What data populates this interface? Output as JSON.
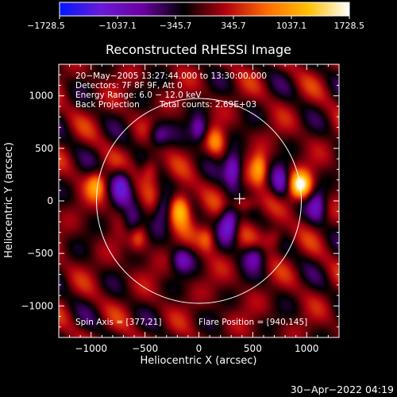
{
  "chart_data": {
    "type": "heatmap",
    "title": "Reconstructed RHESSI Image",
    "xlabel": "Heliocentric X (arcsec)",
    "ylabel": "Heliocentric Y (arcsec)",
    "xlim": [
      -1300,
      1300
    ],
    "ylim": [
      -1300,
      1300
    ],
    "xticks": [
      -1000,
      -500,
      0,
      500,
      1000
    ],
    "yticks": [
      -1000,
      -500,
      0,
      500,
      1000
    ],
    "xtick_labels": [
      "−1000",
      "−500",
      "0",
      "500",
      "1000"
    ],
    "ytick_labels": [
      "−1000",
      "−500",
      "0",
      "500",
      "1000"
    ],
    "colorbar": {
      "min": -1728.5,
      "max": 1728.5,
      "ticks": [
        -1728.5,
        -1037.1,
        -345.7,
        345.7,
        1037.1,
        1728.5
      ],
      "tick_labels": [
        "−1728.5",
        "−1037.1",
        "−345.7",
        "345.7",
        "1037.1",
        "1728.5"
      ],
      "colors": [
        "#0018ff",
        "#6a1ad8",
        "#6a00a0",
        "#000000",
        "#b00010",
        "#ff6a00",
        "#ffc000",
        "#ffffff"
      ]
    },
    "info_lines": [
      "20−May−2005 13:27:44.000 to 13:30:00.000",
      "Detectors: 7F 8F 9F, Att 0",
      "Energy Range: 6.0 − 12.0 keV",
      "Back Projection",
      "Total counts: 2.69E+03"
    ],
    "spin_axis_label": "Spin Axis = [377,21]",
    "flare_position_label": "Flare Position = [940,145]",
    "spin_axis": [
      377,
      21
    ],
    "flare_position": [
      940,
      145
    ],
    "solar_limb_radius_arcsec": 950,
    "grid": false,
    "sources": [
      {
        "x": 940,
        "y": 145,
        "value": 1728.5,
        "sx": 70,
        "sy": 90
      },
      {
        "x": -170,
        "y": -70,
        "value": 1500,
        "sx": 70,
        "sy": 110
      },
      {
        "x": 560,
        "y": 300,
        "value": 1150,
        "sx": 55,
        "sy": 100
      },
      {
        "x": -950,
        "y": 160,
        "value": 900,
        "sx": 60,
        "sy": 90
      },
      {
        "x": 420,
        "y": -30,
        "value": 800,
        "sx": 80,
        "sy": 60
      },
      {
        "x": 160,
        "y": 560,
        "value": 800,
        "sx": 60,
        "sy": 90
      },
      {
        "x": -450,
        "y": 300,
        "value": 800,
        "sx": 60,
        "sy": 90
      },
      {
        "x": 80,
        "y": -350,
        "value": 800,
        "sx": 60,
        "sy": 90
      },
      {
        "x": -570,
        "y": -350,
        "value": 700,
        "sx": 60,
        "sy": 90
      },
      {
        "x": 700,
        "y": -350,
        "value": 700,
        "sx": 70,
        "sy": 80
      },
      {
        "x": 320,
        "y": 300,
        "value": -1300,
        "sx": 60,
        "sy": 110
      },
      {
        "x": 280,
        "y": -210,
        "value": -1250,
        "sx": 60,
        "sy": 110
      },
      {
        "x": -720,
        "y": 160,
        "value": -1000,
        "sx": 60,
        "sy": 110
      },
      {
        "x": 0,
        "y": 680,
        "value": -1000,
        "sx": 60,
        "sy": 90
      },
      {
        "x": 760,
        "y": 180,
        "value": -900,
        "sx": 60,
        "sy": 110
      },
      {
        "x": -330,
        "y": -60,
        "value": -900,
        "sx": 60,
        "sy": 110
      },
      {
        "x": -620,
        "y": -220,
        "value": -800,
        "sx": 60,
        "sy": 110
      },
      {
        "x": 1100,
        "y": -40,
        "value": -800,
        "sx": 60,
        "sy": 110
      },
      {
        "x": 520,
        "y": -520,
        "value": -800,
        "sx": 70,
        "sy": 80
      },
      {
        "x": -160,
        "y": -560,
        "value": -800,
        "sx": 70,
        "sy": 80
      },
      {
        "x": -380,
        "y": 620,
        "value": -800,
        "sx": 70,
        "sy": 80
      }
    ]
  },
  "footer": {
    "timestamp": "30−Apr−2022 04:19"
  }
}
